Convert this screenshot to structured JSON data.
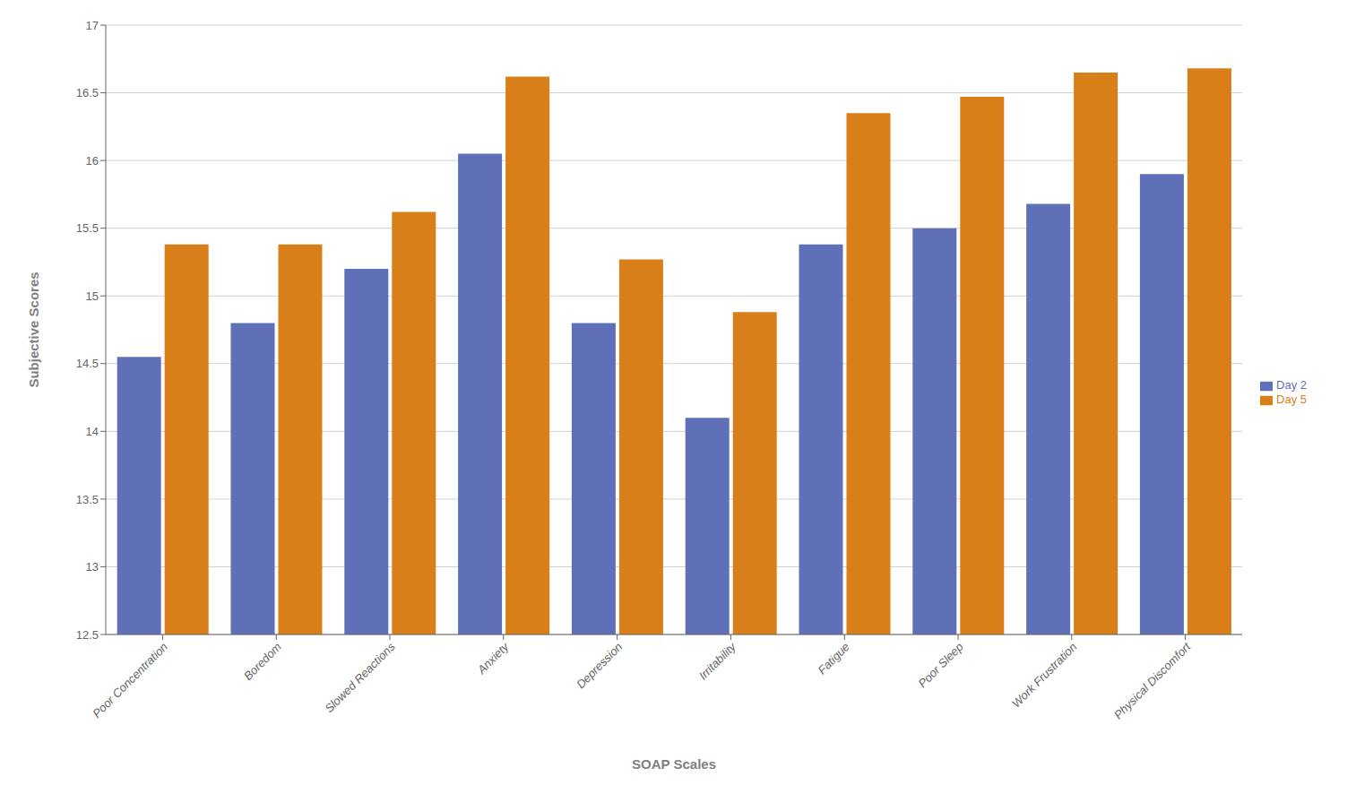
{
  "chart_data": {
    "type": "bar",
    "xlabel": "SOAP Scales",
    "ylabel": "Subjective Scores",
    "categories": [
      "Poor Concentration",
      "Boredom",
      "Slowed Reactions",
      "Anxiety",
      "Depression",
      "Irritability",
      "Fatigue",
      "Poor Sleep",
      "Work Frustration",
      "Physical Discomfort"
    ],
    "series": [
      {
        "name": "Day 2",
        "color": "#6070b8",
        "values": [
          14.55,
          14.8,
          15.2,
          16.05,
          14.8,
          14.1,
          15.38,
          15.5,
          15.68,
          15.9
        ]
      },
      {
        "name": "Day 5",
        "color": "#d97f1a",
        "values": [
          15.38,
          15.38,
          15.62,
          16.62,
          15.27,
          14.88,
          16.35,
          16.47,
          16.65,
          16.68
        ]
      }
    ],
    "ylim": [
      12.5,
      17
    ],
    "yticks": [
      12.5,
      13,
      13.5,
      14,
      14.5,
      15,
      15.5,
      16,
      16.5,
      17
    ],
    "grid": true,
    "legend": "right"
  }
}
